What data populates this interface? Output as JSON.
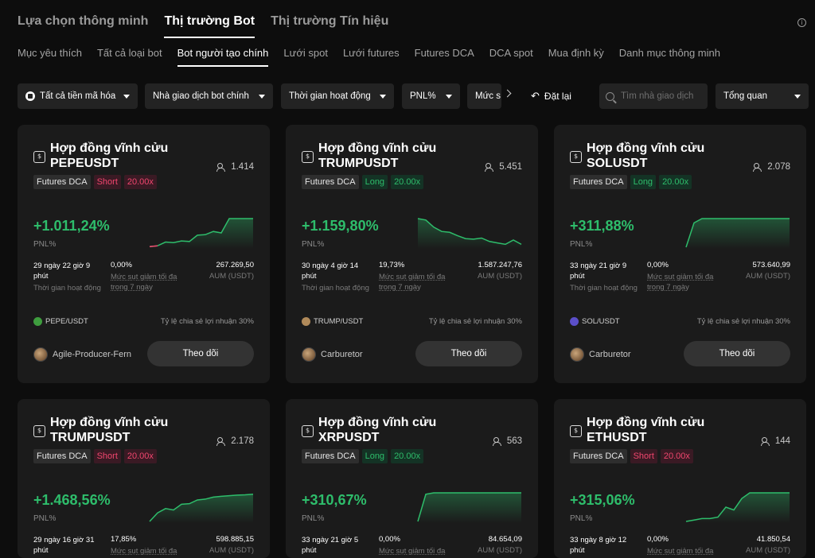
{
  "main_tabs": [
    {
      "label": "Lựa chọn thông minh",
      "active": false
    },
    {
      "label": "Thị trường Bot",
      "active": true
    },
    {
      "label": "Thị trường Tín hiệu",
      "active": false
    }
  ],
  "sub_tabs": [
    {
      "label": "Mục yêu thích",
      "active": false
    },
    {
      "label": "Tất cả loại bot",
      "active": false
    },
    {
      "label": "Bot người tạo chính",
      "active": true
    },
    {
      "label": "Lưới spot",
      "active": false
    },
    {
      "label": "Lưới futures",
      "active": false
    },
    {
      "label": "Futures DCA",
      "active": false
    },
    {
      "label": "DCA spot",
      "active": false
    },
    {
      "label": "Mua định kỳ",
      "active": false
    },
    {
      "label": "Danh mục thông minh",
      "active": false
    }
  ],
  "filters": {
    "all_coins": "Tất cả tiền mã hóa",
    "main_trader_bot": "Nhà giao dịch bot chính",
    "runtime": "Thời gian hoạt động",
    "pnl": "PNL%",
    "level": "Mức s",
    "reset": "Đặt lại",
    "search_placeholder": "Tìm nhà giao dịch",
    "overview": "Tổng quan"
  },
  "colors": {
    "positive": "#2ebd6b",
    "negative": "#f1466e",
    "background": "#0d0d0d",
    "card": "#1b1b1b"
  },
  "labels": {
    "pnl_label": "PNL%",
    "runtime_label": "Thời gian hoạt động",
    "drawdown_label": "Mức sụt giảm tối đa trong 7 ngày",
    "aum_label": "AUM (USDT)",
    "follow_button": "Theo dõi"
  },
  "cards": [
    {
      "title_line1": "Hợp đồng vĩnh cửu",
      "title_line2": "PEPEUSDT",
      "followers": "1.414",
      "strategy": "Futures DCA",
      "direction": "Short",
      "leverage": "20.00x",
      "pnl": "+1.011,24%",
      "runtime": "29 ngày 22 giờ 9 phút",
      "drawdown": "0,00%",
      "aum": "267.269,50",
      "pair": "PEPE/USDT",
      "pair_icon_color": "#3e9d3e",
      "profit_share": "Tỷ lệ chia sẻ lợi nhuận 30%",
      "creator": "Agile-Producer-Fern",
      "spark": [
        0.02,
        0.05,
        0.18,
        0.16,
        0.22,
        0.2,
        0.42,
        0.44,
        0.55,
        0.5,
        1,
        1,
        1,
        1
      ],
      "spark_start_red": true
    },
    {
      "title_line1": "Hợp đồng vĩnh cửu",
      "title_line2": "TRUMPUSDT",
      "followers": "5.451",
      "strategy": "Futures DCA",
      "direction": "Long",
      "leverage": "20.00x",
      "pnl": "+1.159,80%",
      "runtime": "30 ngày 4 giờ 14 phút",
      "drawdown": "19,73%",
      "aum": "1.587.247,76",
      "pair": "TRUMP/USDT",
      "pair_icon_color": "#b08a5a",
      "profit_share": "Tỷ lệ chia sẻ lợi nhuận 30%",
      "creator": "Carburetor",
      "spark": [
        1,
        0.95,
        0.7,
        0.55,
        0.52,
        0.4,
        0.3,
        0.28,
        0.32,
        0.2,
        0.15,
        0.1,
        0.25,
        0.1
      ]
    },
    {
      "title_line1": "Hợp đồng vĩnh cửu",
      "title_line2": "SOLUSDT",
      "followers": "2.078",
      "strategy": "Futures DCA",
      "direction": "Long",
      "leverage": "20.00x",
      "pnl": "+311,88%",
      "runtime": "33 ngày 21 giờ 9 phút",
      "drawdown": "0,00%",
      "aum": "573.640,99",
      "pair": "SOL/USDT",
      "pair_icon_color": "#5b4fc9",
      "profit_share": "Tỷ lệ chia sẻ lợi nhuận 30%",
      "creator": "Carburetor",
      "spark": [
        0,
        0.85,
        1,
        1,
        1,
        1,
        1,
        1,
        1,
        1,
        1,
        1,
        1,
        1
      ]
    },
    {
      "title_line1": "Hợp đồng vĩnh cửu",
      "title_line2": "TRUMPUSDT",
      "followers": "2.178",
      "strategy": "Futures DCA",
      "direction": "Short",
      "leverage": "20.00x",
      "pnl": "+1.468,56%",
      "runtime": "29 ngày 16 giờ 31 phút",
      "drawdown": "17,85%",
      "aum": "598.885,15",
      "pair": "",
      "pair_icon_color": "",
      "profit_share": "",
      "creator": "",
      "spark": [
        0,
        0.3,
        0.45,
        0.4,
        0.6,
        0.62,
        0.75,
        0.78,
        0.85,
        0.88,
        0.9,
        0.92,
        0.93,
        0.95
      ]
    },
    {
      "title_line1": "Hợp đồng vĩnh cửu",
      "title_line2": "XRPUSDT",
      "followers": "563",
      "strategy": "Futures DCA",
      "direction": "Long",
      "leverage": "20.00x",
      "pnl": "+310,67%",
      "runtime": "33 ngày 21 giờ 5 phút",
      "drawdown": "0,00%",
      "aum": "84.654,09",
      "pair": "",
      "pair_icon_color": "",
      "profit_share": "",
      "creator": "",
      "spark": [
        0,
        0.95,
        1,
        1,
        1,
        1,
        1,
        1,
        1,
        1,
        1,
        1,
        1,
        1
      ]
    },
    {
      "title_line1": "Hợp đồng vĩnh cửu",
      "title_line2": "ETHUSDT",
      "followers": "144",
      "strategy": "Futures DCA",
      "direction": "Short",
      "leverage": "20.00x",
      "pnl": "+315,06%",
      "runtime": "33 ngày 8 giờ 12 phút",
      "drawdown": "0,00%",
      "aum": "41.850,54",
      "pair": "",
      "pair_icon_color": "",
      "profit_share": "",
      "creator": "",
      "spark": [
        0,
        0.05,
        0.1,
        0.1,
        0.15,
        0.5,
        0.4,
        0.8,
        1,
        1,
        1,
        1,
        1,
        1
      ]
    }
  ]
}
